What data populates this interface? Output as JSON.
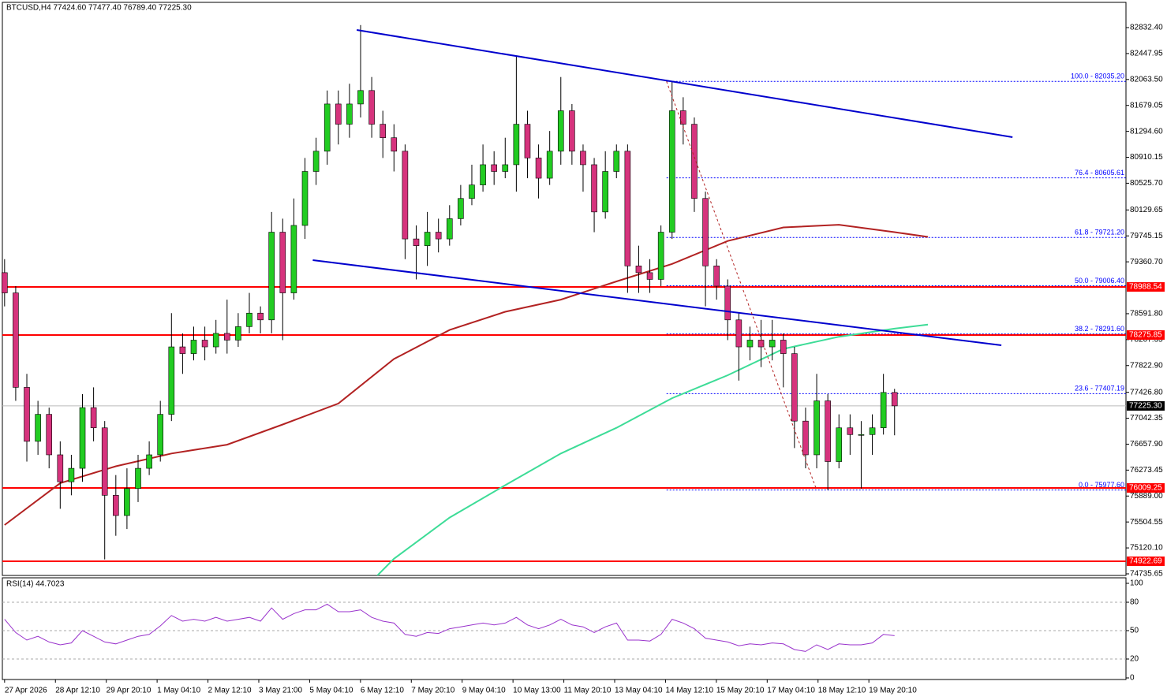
{
  "chart_data": {
    "type": "candlestick",
    "title": "BTCUSD,H4  77424.60 77477.40 76789.40 77225.30",
    "xlim": [
      -0.2,
      100.8
    ],
    "ylim": [
      74712.0,
      83206.3
    ],
    "up_color": "#22cc22",
    "down_color": "#d6337d",
    "wick_color": "#000000",
    "open": [
      79200,
      78900,
      77500,
      76700,
      77100,
      76500,
      76100,
      76300,
      77200,
      76900,
      75900,
      75600,
      76000,
      76300,
      76500,
      77100,
      78100,
      78000,
      78200,
      78100,
      78300,
      78200,
      78400,
      78600,
      78500,
      79800,
      78900,
      79900,
      80700,
      81000,
      81700,
      81400,
      81700,
      81900,
      81400,
      81200,
      81000,
      79700,
      79600,
      79800,
      79700,
      80000,
      80300,
      80500,
      80800,
      80700,
      80800,
      81400,
      80900,
      80600,
      81000,
      81600,
      81000,
      80800,
      80100,
      80700,
      81000,
      79300,
      79200,
      79100,
      79800,
      81600,
      81400,
      80300,
      79300,
      79000,
      78500,
      78100,
      78200,
      78100,
      78200,
      78000,
      77000,
      76500,
      77300,
      76400,
      76900,
      76800,
      76800,
      76900,
      77424.6
    ],
    "high": [
      79400,
      79000,
      77700,
      77300,
      77200,
      76700,
      76500,
      77400,
      77500,
      77000,
      76200,
      76300,
      76500,
      76700,
      77300,
      78600,
      78300,
      78400,
      78400,
      78500,
      78800,
      78600,
      78900,
      78700,
      80100,
      80000,
      80300,
      80900,
      81200,
      81900,
      81900,
      82000,
      82870,
      82100,
      81600,
      81400,
      81100,
      79900,
      80100,
      80000,
      80200,
      80500,
      80800,
      81100,
      81000,
      81200,
      82400,
      81600,
      81100,
      81300,
      82100,
      81700,
      81100,
      80900,
      81000,
      81100,
      81100,
      79600,
      79400,
      79900,
      82035.2,
      81800,
      81500,
      80400,
      79400,
      79100,
      78600,
      78400,
      78500,
      78500,
      78300,
      78100,
      77200,
      77700,
      77400,
      77100,
      77100,
      77000,
      77100,
      77700,
      77477.4
    ],
    "low": [
      78700,
      77300,
      76400,
      76500,
      76300,
      75700,
      75900,
      76100,
      76700,
      74950,
      75300,
      75400,
      75800,
      76200,
      76400,
      77000,
      77700,
      77900,
      77900,
      78000,
      78000,
      78100,
      78300,
      78300,
      78300,
      78200,
      78800,
      79700,
      80500,
      80800,
      81100,
      81200,
      81500,
      81200,
      80900,
      80700,
      79400,
      79100,
      79300,
      79500,
      79600,
      79900,
      80200,
      80400,
      80500,
      80600,
      80400,
      80600,
      80300,
      80500,
      80800,
      80800,
      80400,
      79800,
      80000,
      80600,
      78900,
      78900,
      78900,
      79000,
      79700,
      81100,
      80100,
      78700,
      78800,
      78200,
      77600,
      77900,
      77800,
      77900,
      77500,
      76600,
      76300,
      76300,
      75977.6,
      76300,
      76500,
      76000,
      76500,
      76800,
      76789.4
    ],
    "close": [
      78900,
      77500,
      76700,
      77100,
      76500,
      76100,
      76300,
      77200,
      76900,
      75900,
      75600,
      76000,
      76300,
      76500,
      77100,
      78100,
      78000,
      78200,
      78100,
      78300,
      78200,
      78400,
      78600,
      78500,
      79800,
      78900,
      79900,
      80700,
      81000,
      81700,
      81400,
      81700,
      81900,
      81400,
      81200,
      81000,
      79700,
      79600,
      79800,
      79700,
      80000,
      80300,
      80500,
      80800,
      80700,
      80800,
      81400,
      80900,
      80600,
      81000,
      81600,
      81000,
      80800,
      80100,
      80700,
      81000,
      79300,
      79200,
      79100,
      79800,
      81600,
      81400,
      80300,
      79300,
      79000,
      78500,
      78100,
      78200,
      78100,
      78200,
      78000,
      77000,
      76500,
      77300,
      76400,
      76900,
      76800,
      76800,
      76900,
      77424.6,
      77225.3
    ],
    "yticks": [
      {
        "value": 82832.4,
        "label": "82832.40"
      },
      82447.95,
      {
        "value": 82063.5,
        "label": "82063.50"
      },
      81679.05,
      {
        "value": 81294.6,
        "label": "81294.60"
      },
      80910.15,
      {
        "value": 80525.7,
        "label": "80525.70"
      },
      80129.65,
      79745.15,
      {
        "value": 79360.7,
        "label": "79360.70"
      },
      {
        "value": 78591.8,
        "label": "78591.80"
      },
      78207.35,
      {
        "value": 77822.9,
        "label": "77822.90"
      },
      {
        "value": 77426.8,
        "label": "77426.80"
      },
      77042.35,
      {
        "value": 76657.9,
        "label": "76657.90"
      },
      76273.45,
      {
        "value": 75889.0,
        "label": "75889.00"
      },
      75504.55,
      {
        "value": 75120.1,
        "label": "75120.10"
      },
      74735.65
    ],
    "xticks": [
      {
        "value": 0,
        "label": "27 Apr 2026"
      },
      {
        "value": 4.57,
        "label": "28 Apr 12:10"
      },
      {
        "value": 9.14,
        "label": "29 Apr 20:10"
      },
      {
        "value": 13.71,
        "label": "1 May 04:10"
      },
      {
        "value": 18.28,
        "label": "2 May 12:10"
      },
      {
        "value": 22.85,
        "label": "3 May 21:00"
      },
      {
        "value": 27.42,
        "label": "5 May 04:10"
      },
      {
        "value": 31.99,
        "label": "6 May 12:10"
      },
      {
        "value": 36.56,
        "label": "7 May 20:10"
      },
      {
        "value": 41.13,
        "label": "9 May 04:10"
      },
      {
        "value": 45.7,
        "label": "10 May 13:00"
      },
      {
        "value": 50.27,
        "label": "11 May 20:10"
      },
      {
        "value": 54.84,
        "label": "13 May 04:10"
      },
      {
        "value": 59.41,
        "label": "14 May 12:10"
      },
      {
        "value": 63.98,
        "label": "15 May 20:10"
      },
      {
        "value": 68.55,
        "label": "17 May 04:10"
      },
      {
        "value": 73.12,
        "label": "18 May 12:10"
      },
      {
        "value": 77.69,
        "label": "19 May 20:10"
      }
    ],
    "moving_averages": [
      {
        "color": "#b22222",
        "x": [
          0,
          5,
          10,
          15,
          20,
          25,
          30,
          35,
          40,
          45,
          50,
          55,
          60,
          65,
          70,
          75,
          80,
          83
        ],
        "values": [
          75460,
          76080,
          76330,
          76520,
          76650,
          76950,
          77260,
          77920,
          78350,
          78620,
          78800,
          79070,
          79330,
          79670,
          79870,
          79910,
          79800,
          79730
        ]
      },
      {
        "color": "#3ddc97",
        "x": [
          33.5,
          35,
          40,
          45,
          50,
          55,
          60,
          65,
          70,
          75,
          80,
          83
        ],
        "values": [
          74710,
          74960,
          75570,
          76050,
          76520,
          76900,
          77340,
          77680,
          78070,
          78250,
          78370,
          78430
        ]
      }
    ],
    "trendlines": [
      {
        "color": "#0000cd",
        "x": [
          31.65,
          90.6
        ],
        "values": [
          82797,
          81208
        ]
      },
      {
        "color": "#0000cd",
        "x": [
          27.7,
          89.6
        ],
        "values": [
          79386,
          78124
        ]
      }
    ],
    "levels": [
      {
        "value": 78988.54,
        "color": "#ff0000"
      },
      {
        "value": 78275.85,
        "color": "#ff0000"
      },
      {
        "value": 76009.25,
        "color": "#ff0000"
      },
      {
        "value": 74922.69,
        "color": "#ff0000"
      }
    ],
    "current_price": {
      "value": 77225.3,
      "label": "77225.30"
    },
    "fibonacci": {
      "color": "#b22222",
      "level_color": "#0000ff",
      "x": [
        59.5,
        73.0
      ],
      "values": [
        82035.2,
        75977.6
      ],
      "levels": [
        {
          "value": 82035.2,
          "label": "100.0 - 82035.20"
        },
        {
          "value": 80605.61,
          "label": "76.4 - 80605.61"
        },
        {
          "value": 79721.2,
          "label": "61.8 - 79721.20"
        },
        {
          "value": 79006.4,
          "label": "50.0 - 79006.40"
        },
        {
          "value": 78291.6,
          "label": "38.2 - 78291.60"
        },
        {
          "value": 77407.19,
          "label": "23.6 - 77407.19"
        },
        {
          "value": 75977.6,
          "label": "0.0 - 75977.60"
        }
      ]
    },
    "rsi": {
      "title": "RSI(14) 44.7023",
      "color": "#9932cc",
      "ylim": [
        0,
        100
      ],
      "yticks": [
        0,
        20,
        50,
        80,
        100
      ],
      "values": [
        62,
        48,
        40,
        44,
        38,
        35,
        37,
        50,
        44,
        38,
        36,
        40,
        44,
        46,
        55,
        66,
        60,
        62,
        60,
        64,
        60,
        62,
        64,
        60,
        74,
        62,
        68,
        72,
        72,
        78,
        70,
        70,
        72,
        64,
        60,
        58,
        46,
        44,
        48,
        47,
        52,
        54,
        56,
        58,
        56,
        58,
        64,
        56,
        52,
        56,
        62,
        56,
        54,
        48,
        54,
        58,
        40,
        40,
        39,
        46,
        62,
        58,
        52,
        42,
        40,
        38,
        34,
        36,
        35,
        37,
        36,
        30,
        28,
        35,
        30,
        36,
        35,
        35,
        37,
        46,
        44.7023
      ]
    }
  }
}
